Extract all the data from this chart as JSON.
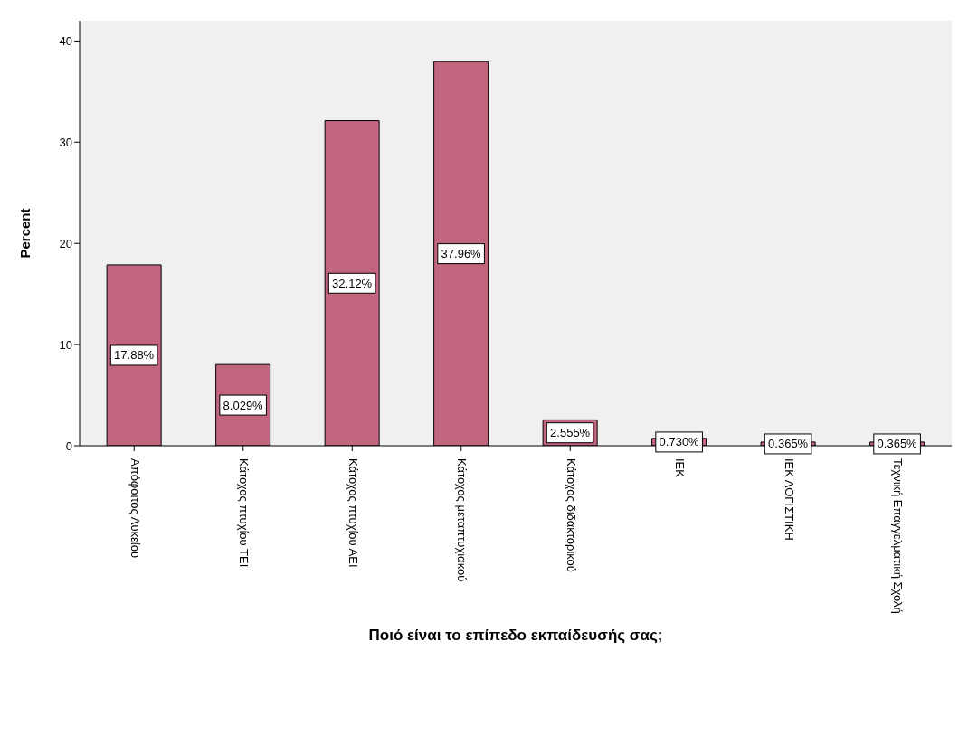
{
  "chart_data": {
    "type": "bar",
    "xlabel": "Ποιό είναι το επίπεδο εκπαίδευσής σας;",
    "ylabel": "Percent",
    "categories": [
      "Απόφοιτος Λυκείου",
      "Κάτοχος πτυχίου ΤΕΙ",
      "Κάτοχος πτυχίου ΑΕΙ",
      "Κάτοχος μεταπτυχιακού",
      "Κάτοχος διδακτορικού",
      "ΙΕΚ",
      "ΙΕΚ ΛΟΓΙΣΤΙΚΗ",
      "Τεχνική Επαγγελματική Σχολή"
    ],
    "values": [
      17.88,
      8.029,
      32.12,
      37.96,
      2.555,
      0.73,
      0.365,
      0.365
    ],
    "value_labels": [
      "17.88%",
      "8.029%",
      "32.12%",
      "37.96%",
      "2.555%",
      "0.730%",
      "0.365%",
      "0.365%"
    ],
    "color": "#c2657f",
    "ylim": [
      0,
      42
    ],
    "yticks": [
      0,
      10,
      20,
      30,
      40
    ],
    "grid": false,
    "legend": false
  }
}
